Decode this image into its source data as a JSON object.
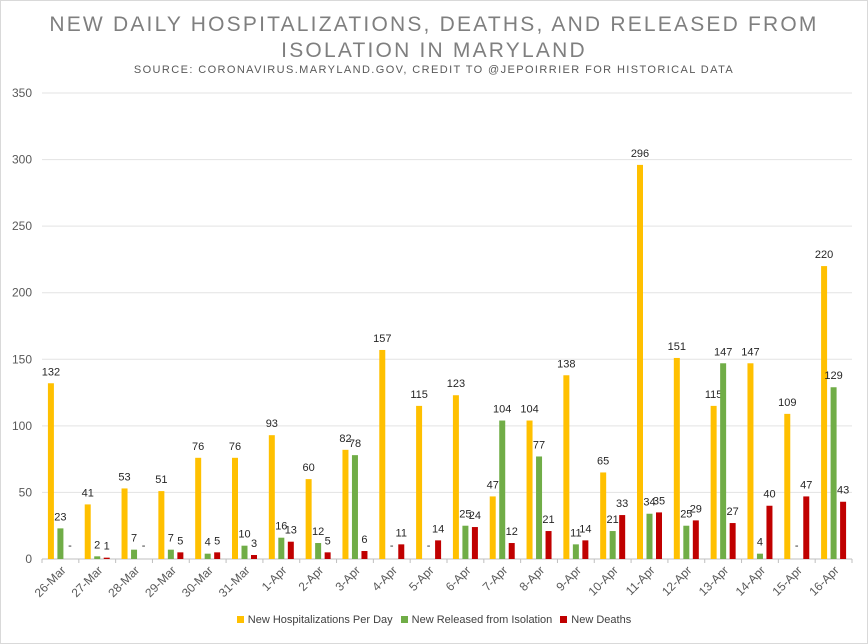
{
  "chart_data": {
    "type": "bar",
    "title": "NEW DAILY HOSPITALIZATIONS, DEATHS, AND RELEASED FROM\nISOLATION IN MARYLAND",
    "subtitle": "SOURCE: CORONAVIRUS.MARYLAND.GOV, CREDIT TO @JEPOIRRIER FOR HISTORICAL DATA",
    "xlabel": "",
    "ylabel": "",
    "ylim": [
      0,
      350
    ],
    "yticks": [
      0,
      50,
      100,
      150,
      200,
      250,
      300,
      350
    ],
    "grid": "horizontal",
    "legend_position": "bottom",
    "categories": [
      "26-Mar",
      "27-Mar",
      "28-Mar",
      "29-Mar",
      "30-Mar",
      "31-Mar",
      "1-Apr",
      "2-Apr",
      "3-Apr",
      "4-Apr",
      "5-Apr",
      "6-Apr",
      "7-Apr",
      "8-Apr",
      "9-Apr",
      "10-Apr",
      "11-Apr",
      "12-Apr",
      "13-Apr",
      "14-Apr",
      "15-Apr",
      "16-Apr"
    ],
    "series": [
      {
        "name": "New Hospitalizations Per Day",
        "color": "#FFC000",
        "values": [
          132,
          41,
          53,
          51,
          76,
          76,
          93,
          60,
          82,
          157,
          115,
          123,
          47,
          104,
          138,
          65,
          296,
          151,
          115,
          147,
          109,
          220
        ]
      },
      {
        "name": "New Released from Isolation",
        "color": "#70AD47",
        "values": [
          23,
          2,
          7,
          7,
          4,
          10,
          16,
          12,
          78,
          null,
          null,
          25,
          104,
          77,
          11,
          21,
          34,
          25,
          147,
          4,
          null,
          129
        ]
      },
      {
        "name": "New Deaths",
        "color": "#C00000",
        "values": [
          null,
          1,
          null,
          5,
          5,
          3,
          13,
          5,
          6,
          11,
          14,
          24,
          12,
          21,
          14,
          33,
          35,
          29,
          27,
          40,
          47,
          43
        ]
      }
    ],
    "missing_label": "-"
  }
}
